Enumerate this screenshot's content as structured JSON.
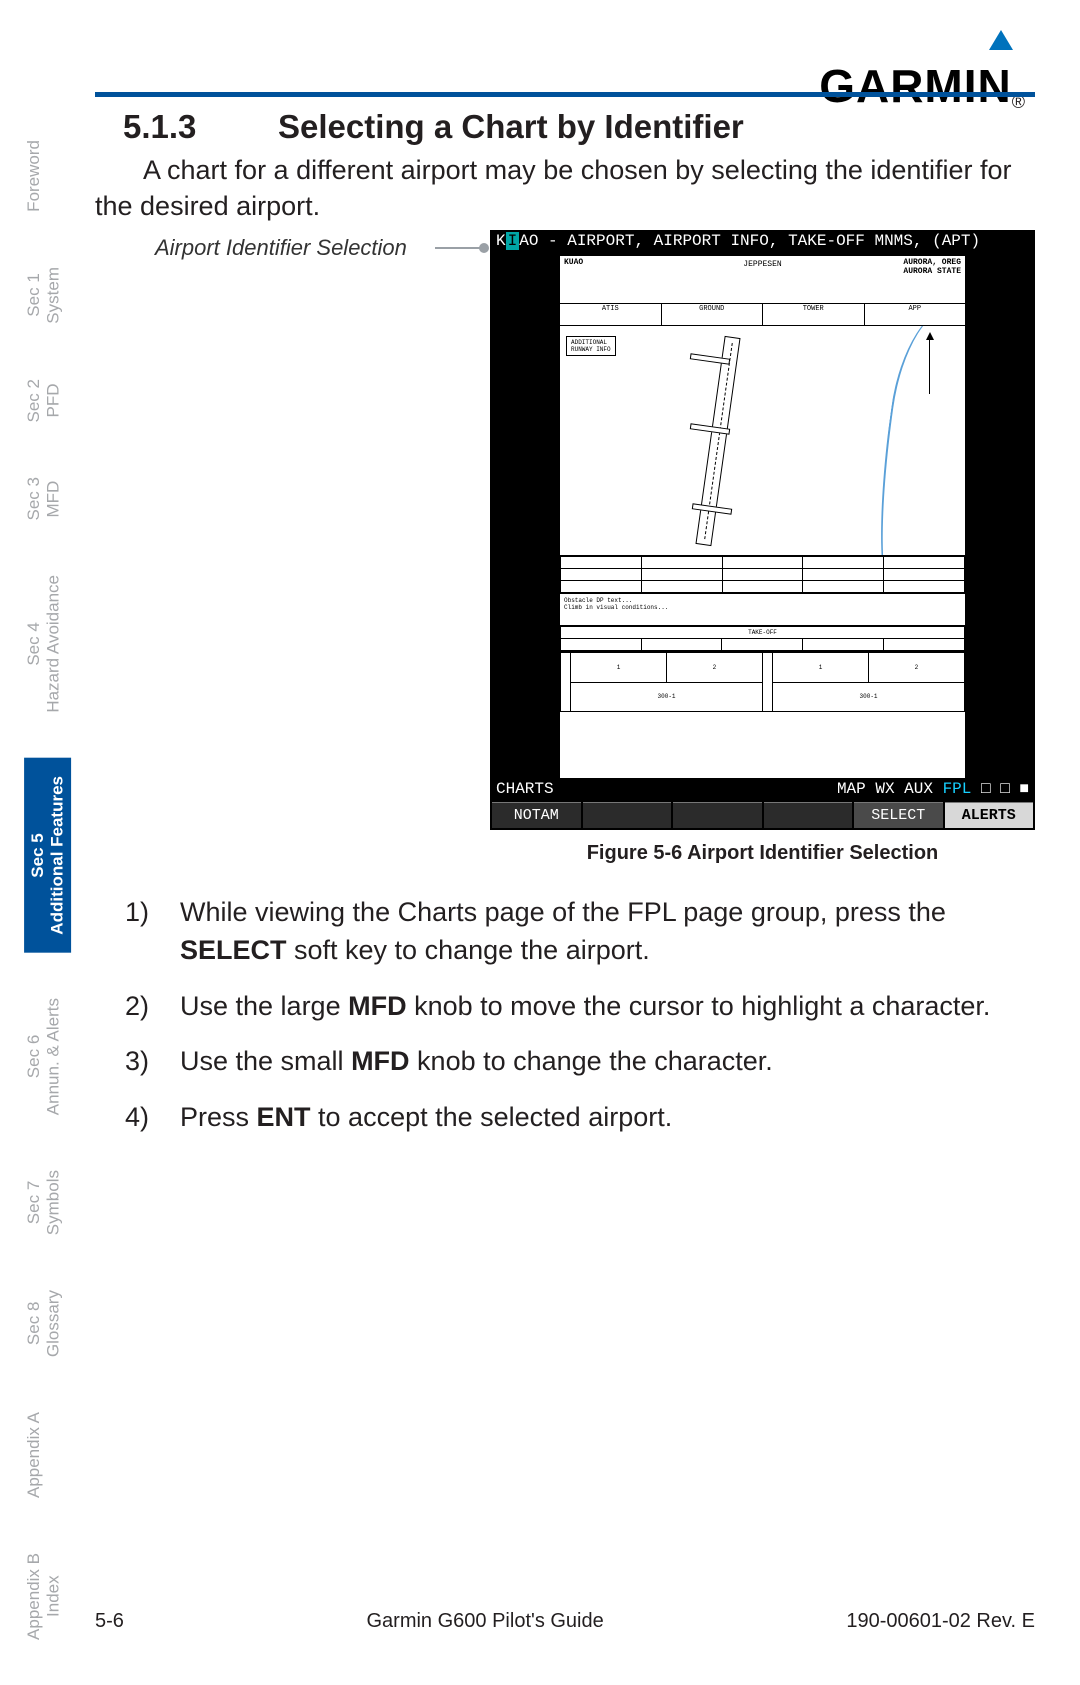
{
  "logo": {
    "text": "GARMIN",
    "reg": "®"
  },
  "accent_color": "#00529b",
  "heading": {
    "number": "5.1.3",
    "title": "Selecting a Chart by Identifier"
  },
  "intro": "A chart for a different airport may be chosen by selecting the identifier for the desired airport.",
  "callout_label": "Airport Identifier Selection",
  "mfd": {
    "ident": "K  AO",
    "ident_hl": "I",
    "title_rest": " -  AIRPORT, AIRPORT INFO, TAKE-OFF MNMS, (APT)",
    "hdr_left": "KUAO",
    "hdr_right_city": "AURORA, OREG",
    "hdr_right_name": "AURORA STATE",
    "hdr_center": "JEPPESEN",
    "pagebar_left": "CHARTS",
    "pagebar_right_pre": "MAP WX AUX ",
    "pagebar_fpl": "FPL",
    "pagebar_boxes": " □ □ ■",
    "softkeys": [
      "NOTAM",
      "",
      "",
      "",
      "SELECT",
      "ALERTS"
    ]
  },
  "figure_caption": "Figure 5-6  Airport Identifier Selection",
  "steps": [
    {
      "n": "1)",
      "pre": "While viewing the Charts page of the FPL page group, press the ",
      "b": "SELECT",
      "post": " soft key to change the airport."
    },
    {
      "n": "2)",
      "pre": "Use the large ",
      "b": "MFD",
      "post": " knob to move the cursor to highlight a character."
    },
    {
      "n": "3)",
      "pre": "Use the small ",
      "b": "MFD",
      "post": " knob to change the character."
    },
    {
      "n": "4)",
      "pre": "Press ",
      "b": "ENT",
      "post": " to accept the selected airport."
    }
  ],
  "tabs": [
    {
      "line1": "",
      "line2": "Foreword"
    },
    {
      "line1": "Sec 1",
      "line2": "System"
    },
    {
      "line1": "Sec 2",
      "line2": "PFD"
    },
    {
      "line1": "Sec 3",
      "line2": "MFD"
    },
    {
      "line1": "Sec 4",
      "line2": "Hazard Avoidance"
    },
    {
      "line1": "Sec 5",
      "line2": "Additional Features",
      "active": true
    },
    {
      "line1": "Sec 6",
      "line2": "Annun. & Alerts"
    },
    {
      "line1": "Sec 7",
      "line2": "Symbols"
    },
    {
      "line1": "Sec 8",
      "line2": "Glossary"
    },
    {
      "line1": "",
      "line2": "Appendix A"
    },
    {
      "line1": "Appendix B",
      "line2": "Index"
    }
  ],
  "footer": {
    "left": "5-6",
    "center": "Garmin G600 Pilot's Guide",
    "right": "190-00601-02  Rev. E"
  }
}
